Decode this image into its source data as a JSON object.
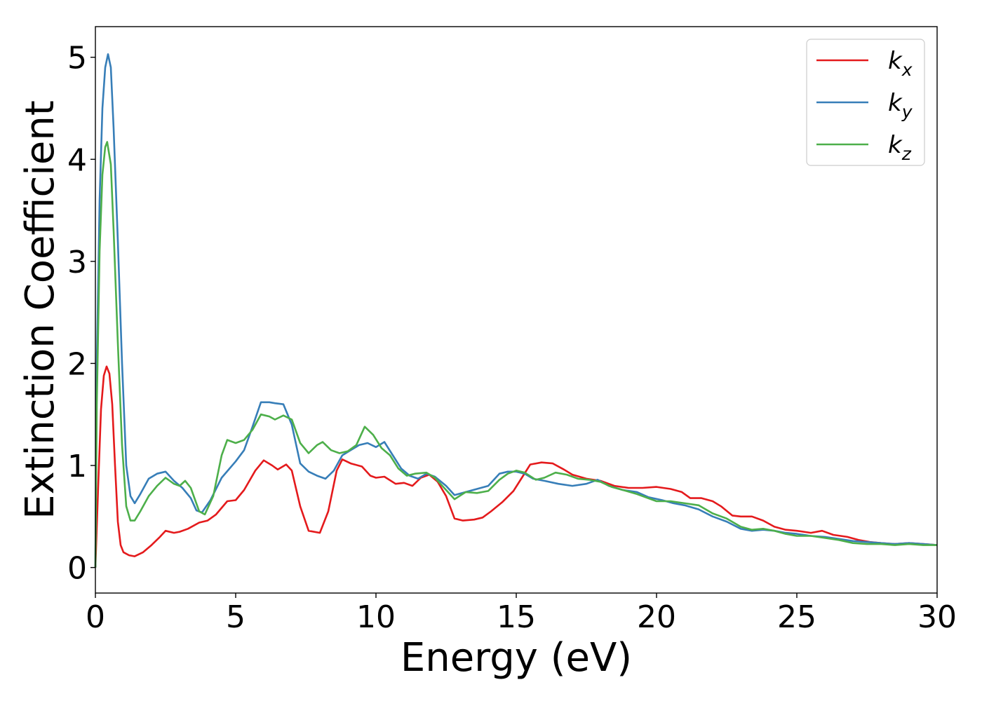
{
  "chart_data": {
    "type": "line",
    "xlabel": "Energy (eV)",
    "ylabel": "Extinction Coefficient",
    "xlim": [
      0,
      30
    ],
    "ylim": [
      -0.25,
      5.3
    ],
    "xticks": [
      0,
      5,
      10,
      15,
      20,
      25,
      30
    ],
    "yticks": [
      0,
      1,
      2,
      3,
      4,
      5
    ],
    "grid": false,
    "legend": "top-right",
    "series": [
      {
        "name": "k",
        "sub": "x",
        "color": "#e41a1c",
        "points": [
          [
            0,
            0
          ],
          [
            0.1,
            0.8
          ],
          [
            0.2,
            1.55
          ],
          [
            0.3,
            1.88
          ],
          [
            0.4,
            1.97
          ],
          [
            0.5,
            1.9
          ],
          [
            0.6,
            1.6
          ],
          [
            0.7,
            1.0
          ],
          [
            0.8,
            0.45
          ],
          [
            0.9,
            0.22
          ],
          [
            1.0,
            0.15
          ],
          [
            1.2,
            0.12
          ],
          [
            1.4,
            0.11
          ],
          [
            1.7,
            0.15
          ],
          [
            2.0,
            0.22
          ],
          [
            2.3,
            0.3
          ],
          [
            2.5,
            0.36
          ],
          [
            2.8,
            0.34
          ],
          [
            3.0,
            0.35
          ],
          [
            3.3,
            0.38
          ],
          [
            3.7,
            0.44
          ],
          [
            4.0,
            0.46
          ],
          [
            4.3,
            0.52
          ],
          [
            4.7,
            0.65
          ],
          [
            5.0,
            0.66
          ],
          [
            5.3,
            0.76
          ],
          [
            5.7,
            0.95
          ],
          [
            6.0,
            1.05
          ],
          [
            6.3,
            1.0
          ],
          [
            6.5,
            0.96
          ],
          [
            6.8,
            1.01
          ],
          [
            7.0,
            0.95
          ],
          [
            7.3,
            0.6
          ],
          [
            7.6,
            0.36
          ],
          [
            8.0,
            0.34
          ],
          [
            8.3,
            0.55
          ],
          [
            8.6,
            0.95
          ],
          [
            8.8,
            1.06
          ],
          [
            9.1,
            1.02
          ],
          [
            9.5,
            0.99
          ],
          [
            9.8,
            0.9
          ],
          [
            10.0,
            0.88
          ],
          [
            10.3,
            0.89
          ],
          [
            10.7,
            0.82
          ],
          [
            11.0,
            0.83
          ],
          [
            11.3,
            0.8
          ],
          [
            11.6,
            0.88
          ],
          [
            11.9,
            0.91
          ],
          [
            12.2,
            0.84
          ],
          [
            12.5,
            0.7
          ],
          [
            12.8,
            0.48
          ],
          [
            13.1,
            0.46
          ],
          [
            13.5,
            0.47
          ],
          [
            13.8,
            0.49
          ],
          [
            14.1,
            0.55
          ],
          [
            14.5,
            0.64
          ],
          [
            14.9,
            0.75
          ],
          [
            15.2,
            0.88
          ],
          [
            15.5,
            1.01
          ],
          [
            15.9,
            1.03
          ],
          [
            16.3,
            1.02
          ],
          [
            16.7,
            0.96
          ],
          [
            17.0,
            0.91
          ],
          [
            17.5,
            0.87
          ],
          [
            18.0,
            0.85
          ],
          [
            18.5,
            0.8
          ],
          [
            19.0,
            0.78
          ],
          [
            19.5,
            0.78
          ],
          [
            20.0,
            0.79
          ],
          [
            20.5,
            0.77
          ],
          [
            20.9,
            0.74
          ],
          [
            21.2,
            0.68
          ],
          [
            21.6,
            0.68
          ],
          [
            22.0,
            0.65
          ],
          [
            22.3,
            0.6
          ],
          [
            22.7,
            0.51
          ],
          [
            23.0,
            0.5
          ],
          [
            23.4,
            0.5
          ],
          [
            23.8,
            0.46
          ],
          [
            24.2,
            0.4
          ],
          [
            24.6,
            0.37
          ],
          [
            25.0,
            0.36
          ],
          [
            25.5,
            0.34
          ],
          [
            25.9,
            0.36
          ],
          [
            26.3,
            0.32
          ],
          [
            26.8,
            0.3
          ],
          [
            27.2,
            0.27
          ],
          [
            27.6,
            0.25
          ],
          [
            28.0,
            0.24
          ],
          [
            28.5,
            0.23
          ],
          [
            29.0,
            0.24
          ],
          [
            29.5,
            0.23
          ],
          [
            30.0,
            0.22
          ]
        ]
      },
      {
        "name": "k",
        "sub": "y",
        "color": "#377eb8",
        "points": [
          [
            0,
            0
          ],
          [
            0.05,
            2.0
          ],
          [
            0.15,
            3.6
          ],
          [
            0.25,
            4.5
          ],
          [
            0.35,
            4.9
          ],
          [
            0.45,
            5.03
          ],
          [
            0.55,
            4.9
          ],
          [
            0.65,
            4.3
          ],
          [
            0.8,
            3.2
          ],
          [
            0.95,
            2.0
          ],
          [
            1.1,
            1.0
          ],
          [
            1.25,
            0.7
          ],
          [
            1.4,
            0.63
          ],
          [
            1.6,
            0.72
          ],
          [
            1.9,
            0.87
          ],
          [
            2.2,
            0.92
          ],
          [
            2.5,
            0.94
          ],
          [
            2.8,
            0.85
          ],
          [
            3.1,
            0.78
          ],
          [
            3.4,
            0.68
          ],
          [
            3.6,
            0.56
          ],
          [
            3.8,
            0.54
          ],
          [
            4.1,
            0.66
          ],
          [
            4.5,
            0.88
          ],
          [
            5.0,
            1.04
          ],
          [
            5.3,
            1.15
          ],
          [
            5.6,
            1.38
          ],
          [
            5.9,
            1.62
          ],
          [
            6.2,
            1.62
          ],
          [
            6.4,
            1.61
          ],
          [
            6.7,
            1.6
          ],
          [
            7.0,
            1.4
          ],
          [
            7.3,
            1.02
          ],
          [
            7.6,
            0.94
          ],
          [
            7.9,
            0.9
          ],
          [
            8.2,
            0.87
          ],
          [
            8.5,
            0.95
          ],
          [
            8.8,
            1.1
          ],
          [
            9.1,
            1.15
          ],
          [
            9.4,
            1.2
          ],
          [
            9.7,
            1.22
          ],
          [
            10.0,
            1.18
          ],
          [
            10.3,
            1.23
          ],
          [
            10.6,
            1.1
          ],
          [
            10.9,
            0.97
          ],
          [
            11.2,
            0.9
          ],
          [
            11.5,
            0.87
          ],
          [
            11.8,
            0.92
          ],
          [
            12.1,
            0.89
          ],
          [
            12.5,
            0.8
          ],
          [
            12.8,
            0.71
          ],
          [
            13.2,
            0.74
          ],
          [
            13.6,
            0.77
          ],
          [
            14.0,
            0.8
          ],
          [
            14.4,
            0.92
          ],
          [
            14.7,
            0.94
          ],
          [
            15.0,
            0.94
          ],
          [
            15.3,
            0.92
          ],
          [
            15.6,
            0.87
          ],
          [
            16.0,
            0.85
          ],
          [
            16.5,
            0.82
          ],
          [
            17.0,
            0.8
          ],
          [
            17.5,
            0.82
          ],
          [
            17.9,
            0.86
          ],
          [
            18.3,
            0.8
          ],
          [
            18.8,
            0.76
          ],
          [
            19.3,
            0.74
          ],
          [
            19.7,
            0.69
          ],
          [
            20.2,
            0.66
          ],
          [
            20.6,
            0.63
          ],
          [
            21.0,
            0.61
          ],
          [
            21.5,
            0.57
          ],
          [
            22.0,
            0.5
          ],
          [
            22.5,
            0.45
          ],
          [
            23.0,
            0.38
          ],
          [
            23.4,
            0.36
          ],
          [
            23.8,
            0.37
          ],
          [
            24.2,
            0.36
          ],
          [
            24.6,
            0.34
          ],
          [
            25.0,
            0.33
          ],
          [
            25.5,
            0.31
          ],
          [
            26.0,
            0.3
          ],
          [
            26.5,
            0.28
          ],
          [
            27.0,
            0.26
          ],
          [
            27.5,
            0.25
          ],
          [
            28.0,
            0.24
          ],
          [
            28.5,
            0.23
          ],
          [
            29.0,
            0.24
          ],
          [
            29.5,
            0.23
          ],
          [
            30.0,
            0.22
          ]
        ]
      },
      {
        "name": "k",
        "sub": "z",
        "color": "#4daf4a",
        "points": [
          [
            0,
            0
          ],
          [
            0.05,
            1.6
          ],
          [
            0.15,
            3.1
          ],
          [
            0.25,
            3.85
          ],
          [
            0.35,
            4.12
          ],
          [
            0.42,
            4.17
          ],
          [
            0.55,
            3.95
          ],
          [
            0.65,
            3.3
          ],
          [
            0.8,
            2.2
          ],
          [
            0.95,
            1.2
          ],
          [
            1.1,
            0.6
          ],
          [
            1.25,
            0.46
          ],
          [
            1.4,
            0.46
          ],
          [
            1.6,
            0.55
          ],
          [
            1.9,
            0.7
          ],
          [
            2.2,
            0.8
          ],
          [
            2.5,
            0.88
          ],
          [
            2.8,
            0.82
          ],
          [
            3.0,
            0.8
          ],
          [
            3.2,
            0.85
          ],
          [
            3.4,
            0.78
          ],
          [
            3.7,
            0.55
          ],
          [
            3.9,
            0.52
          ],
          [
            4.2,
            0.7
          ],
          [
            4.5,
            1.1
          ],
          [
            4.7,
            1.25
          ],
          [
            5.0,
            1.22
          ],
          [
            5.3,
            1.25
          ],
          [
            5.6,
            1.35
          ],
          [
            5.9,
            1.5
          ],
          [
            6.2,
            1.48
          ],
          [
            6.4,
            1.45
          ],
          [
            6.7,
            1.49
          ],
          [
            7.0,
            1.45
          ],
          [
            7.3,
            1.22
          ],
          [
            7.6,
            1.12
          ],
          [
            7.9,
            1.2
          ],
          [
            8.1,
            1.23
          ],
          [
            8.4,
            1.15
          ],
          [
            8.7,
            1.12
          ],
          [
            9.0,
            1.14
          ],
          [
            9.3,
            1.2
          ],
          [
            9.6,
            1.38
          ],
          [
            9.9,
            1.3
          ],
          [
            10.2,
            1.17
          ],
          [
            10.5,
            1.1
          ],
          [
            10.8,
            0.97
          ],
          [
            11.1,
            0.9
          ],
          [
            11.4,
            0.92
          ],
          [
            11.8,
            0.93
          ],
          [
            12.1,
            0.88
          ],
          [
            12.5,
            0.76
          ],
          [
            12.8,
            0.67
          ],
          [
            13.2,
            0.74
          ],
          [
            13.6,
            0.73
          ],
          [
            14.0,
            0.75
          ],
          [
            14.4,
            0.86
          ],
          [
            14.7,
            0.92
          ],
          [
            15.0,
            0.95
          ],
          [
            15.3,
            0.93
          ],
          [
            15.7,
            0.86
          ],
          [
            16.0,
            0.88
          ],
          [
            16.4,
            0.93
          ],
          [
            16.8,
            0.91
          ],
          [
            17.2,
            0.87
          ],
          [
            17.6,
            0.86
          ],
          [
            18.0,
            0.84
          ],
          [
            18.4,
            0.79
          ],
          [
            18.8,
            0.76
          ],
          [
            19.3,
            0.72
          ],
          [
            19.7,
            0.68
          ],
          [
            20.0,
            0.65
          ],
          [
            20.5,
            0.65
          ],
          [
            21.0,
            0.63
          ],
          [
            21.5,
            0.61
          ],
          [
            22.0,
            0.53
          ],
          [
            22.5,
            0.48
          ],
          [
            23.0,
            0.4
          ],
          [
            23.4,
            0.37
          ],
          [
            23.8,
            0.38
          ],
          [
            24.2,
            0.36
          ],
          [
            24.6,
            0.33
          ],
          [
            25.0,
            0.31
          ],
          [
            25.5,
            0.31
          ],
          [
            26.0,
            0.29
          ],
          [
            26.5,
            0.27
          ],
          [
            27.0,
            0.24
          ],
          [
            27.5,
            0.23
          ],
          [
            28.0,
            0.23
          ],
          [
            28.5,
            0.22
          ],
          [
            29.0,
            0.23
          ],
          [
            29.5,
            0.22
          ],
          [
            30.0,
            0.22
          ]
        ]
      }
    ]
  }
}
